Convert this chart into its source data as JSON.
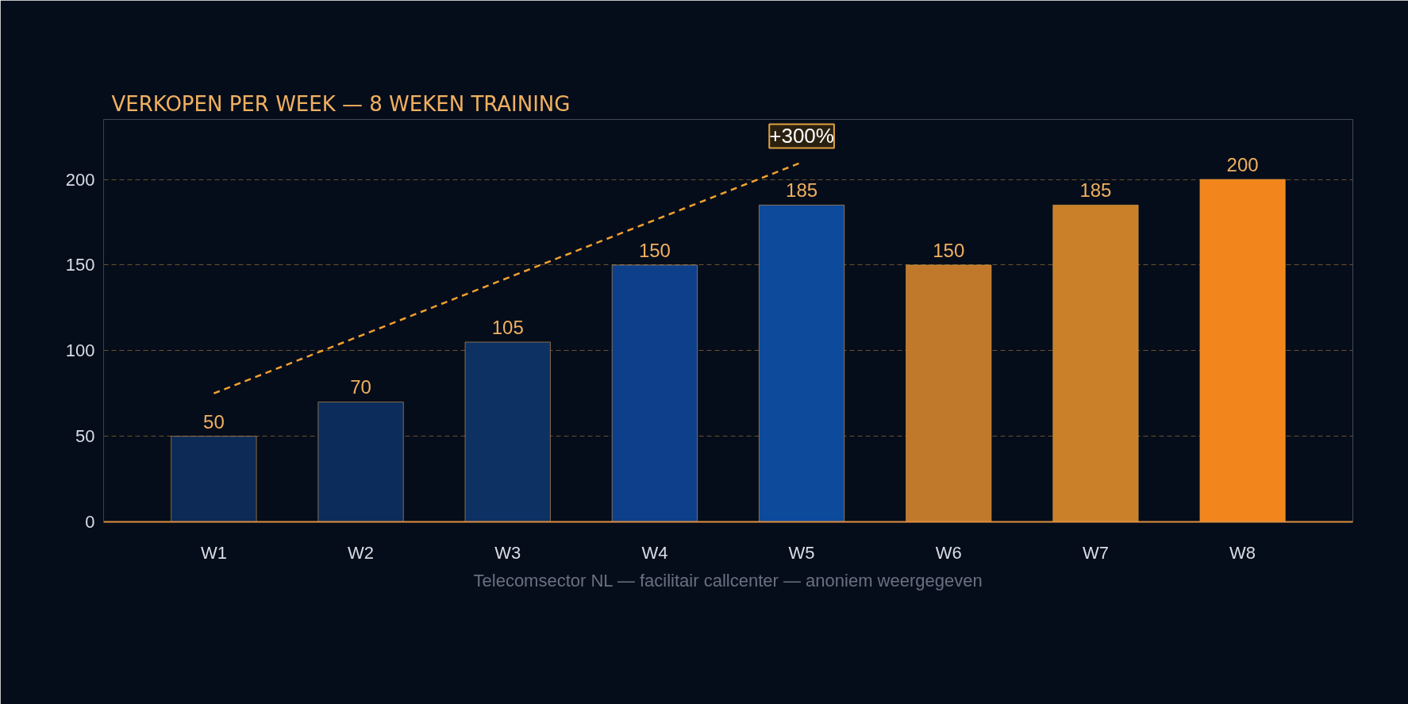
{
  "chart_data": {
    "type": "bar",
    "title": "VERKOPEN PER WEEK — 8 WEKEN TRAINING",
    "categories": [
      "W1",
      "W2",
      "W3",
      "W4",
      "W5",
      "W6",
      "W7",
      "W8"
    ],
    "values": [
      50,
      70,
      105,
      150,
      185,
      150,
      185,
      200
    ],
    "colors": [
      "#0c2a55",
      "#0c2d5c",
      "#0d3163",
      "#0d3f8a",
      "#0d4a9c",
      "#c0782a",
      "#c98028",
      "#f2861c"
    ],
    "series": [
      {
        "type": "line",
        "x": [
          "W1",
          "W5"
        ],
        "values": [
          75,
          210
        ],
        "value_labels": [
          null,
          null
        ],
        "color": "#f0a030",
        "line_style": "dashed"
      }
    ],
    "annotations": [
      "+300%",
      "Telecomsector NL — facilitair callcenter — anoniem weergegeven"
    ],
    "data_labels": true,
    "ylim": [
      0,
      235
    ],
    "yticks": [
      0,
      50,
      100,
      150,
      200
    ],
    "grid": "y"
  }
}
